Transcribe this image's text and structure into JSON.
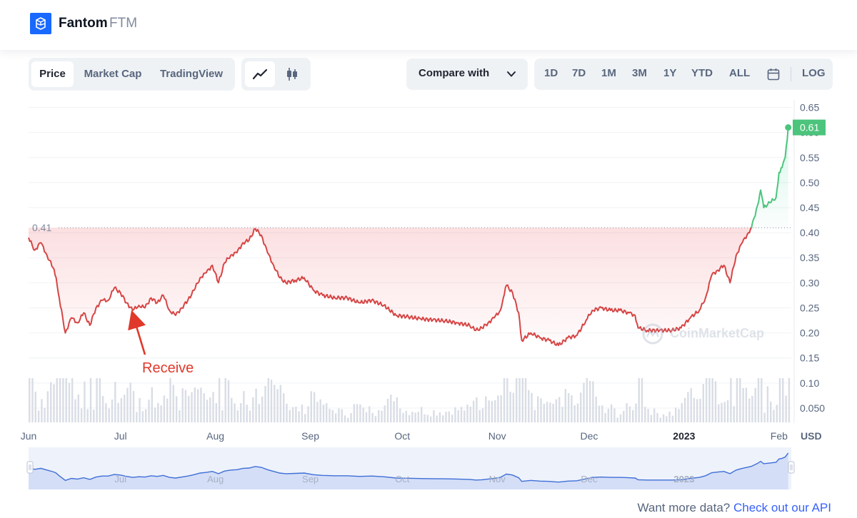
{
  "header": {
    "name": "Fantom",
    "symbol": "FTM"
  },
  "tabs": [
    {
      "label": "Price",
      "active": true
    },
    {
      "label": "Market Cap",
      "active": false
    },
    {
      "label": "TradingView",
      "active": false
    }
  ],
  "chart_types": [
    {
      "icon": "line-chart-icon",
      "active": true
    },
    {
      "icon": "candlestick-icon",
      "active": false
    }
  ],
  "compare": {
    "label": "Compare with",
    "icon": "chevron-down-icon"
  },
  "ranges": [
    "1D",
    "7D",
    "1M",
    "3M",
    "1Y",
    "YTD",
    "ALL"
  ],
  "calendar_icon": "calendar-icon",
  "log_label": "LOG",
  "watermark": "CoinMarketCap",
  "annotation": {
    "text": "Receive",
    "color": "#e0382a"
  },
  "footer": {
    "text": "Want more data? ",
    "link": "Check out our API"
  },
  "colors": {
    "down": "#d64545",
    "up": "#4cc47c",
    "accent": "#3861fb",
    "logo": "#1969ff",
    "navigator": "#3f6fd6"
  },
  "chart_data": {
    "type": "line",
    "title": "",
    "currency": "USD",
    "reference_price": 0.41,
    "reference_label": "0.41",
    "current_price": 0.61,
    "current_label": "0.61",
    "y_range": [
      0.02,
      0.665
    ],
    "y_ticks": [
      {
        "v": 0.65,
        "label": "0.65"
      },
      {
        "v": 0.6,
        "label": "0.60"
      },
      {
        "v": 0.55,
        "label": "0.55"
      },
      {
        "v": 0.5,
        "label": "0.50"
      },
      {
        "v": 0.45,
        "label": "0.45"
      },
      {
        "v": 0.4,
        "label": "0.40"
      },
      {
        "v": 0.35,
        "label": "0.35"
      },
      {
        "v": 0.3,
        "label": "0.30"
      },
      {
        "v": 0.25,
        "label": "0.25"
      },
      {
        "v": 0.2,
        "label": "0.20"
      },
      {
        "v": 0.15,
        "label": "0.15"
      },
      {
        "v": 0.1,
        "label": "0.10"
      },
      {
        "v": 0.05,
        "label": "0.050"
      }
    ],
    "x_range": [
      "2022-06-01",
      "2023-02-05"
    ],
    "x_ticks": [
      {
        "date": "2022-06-01",
        "label": "Jun",
        "bold": false
      },
      {
        "date": "2022-07-01",
        "label": "Jul",
        "bold": false
      },
      {
        "date": "2022-08-01",
        "label": "Aug",
        "bold": false
      },
      {
        "date": "2022-09-01",
        "label": "Sep",
        "bold": false
      },
      {
        "date": "2022-10-01",
        "label": "Oct",
        "bold": false
      },
      {
        "date": "2022-11-01",
        "label": "Nov",
        "bold": false
      },
      {
        "date": "2022-12-01",
        "label": "Dec",
        "bold": false
      },
      {
        "date": "2023-01-01",
        "label": "2023",
        "bold": true
      },
      {
        "date": "2023-02-01",
        "label": "Feb",
        "bold": false
      }
    ],
    "navigator_ticks": [
      "Jul",
      "Aug",
      "Sep",
      "Oct",
      "Nov",
      "Dec",
      "2023"
    ],
    "annotation_point": {
      "date": "2022-07-05",
      "price": 0.245
    },
    "series": [
      {
        "points": [
          [
            "2022-06-01",
            0.39
          ],
          [
            "2022-06-03",
            0.365
          ],
          [
            "2022-06-05",
            0.38
          ],
          [
            "2022-06-07",
            0.355
          ],
          [
            "2022-06-09",
            0.33
          ],
          [
            "2022-06-10",
            0.31
          ],
          [
            "2022-06-11",
            0.27
          ],
          [
            "2022-06-13",
            0.2
          ],
          [
            "2022-06-15",
            0.23
          ],
          [
            "2022-06-17",
            0.22
          ],
          [
            "2022-06-19",
            0.24
          ],
          [
            "2022-06-21",
            0.215
          ],
          [
            "2022-06-23",
            0.25
          ],
          [
            "2022-06-25",
            0.265
          ],
          [
            "2022-06-27",
            0.265
          ],
          [
            "2022-06-29",
            0.29
          ],
          [
            "2022-07-01",
            0.28
          ],
          [
            "2022-07-03",
            0.26
          ],
          [
            "2022-07-05",
            0.245
          ],
          [
            "2022-07-07",
            0.255
          ],
          [
            "2022-07-09",
            0.25
          ],
          [
            "2022-07-11",
            0.27
          ],
          [
            "2022-07-13",
            0.26
          ],
          [
            "2022-07-15",
            0.275
          ],
          [
            "2022-07-17",
            0.245
          ],
          [
            "2022-07-19",
            0.235
          ],
          [
            "2022-07-21",
            0.25
          ],
          [
            "2022-07-23",
            0.265
          ],
          [
            "2022-07-25",
            0.285
          ],
          [
            "2022-07-27",
            0.31
          ],
          [
            "2022-07-29",
            0.32
          ],
          [
            "2022-07-31",
            0.335
          ],
          [
            "2022-08-02",
            0.3
          ],
          [
            "2022-08-04",
            0.34
          ],
          [
            "2022-08-06",
            0.355
          ],
          [
            "2022-08-08",
            0.36
          ],
          [
            "2022-08-10",
            0.38
          ],
          [
            "2022-08-12",
            0.385
          ],
          [
            "2022-08-14",
            0.408
          ],
          [
            "2022-08-16",
            0.395
          ],
          [
            "2022-08-18",
            0.36
          ],
          [
            "2022-08-20",
            0.335
          ],
          [
            "2022-08-22",
            0.31
          ],
          [
            "2022-08-24",
            0.3
          ],
          [
            "2022-08-27",
            0.305
          ],
          [
            "2022-08-30",
            0.31
          ],
          [
            "2022-09-02",
            0.285
          ],
          [
            "2022-09-05",
            0.275
          ],
          [
            "2022-09-09",
            0.27
          ],
          [
            "2022-09-13",
            0.27
          ],
          [
            "2022-09-17",
            0.26
          ],
          [
            "2022-09-21",
            0.265
          ],
          [
            "2022-09-25",
            0.255
          ],
          [
            "2022-09-29",
            0.235
          ],
          [
            "2022-10-03",
            0.232
          ],
          [
            "2022-10-07",
            0.228
          ],
          [
            "2022-10-11",
            0.226
          ],
          [
            "2022-10-15",
            0.224
          ],
          [
            "2022-10-19",
            0.22
          ],
          [
            "2022-10-23",
            0.215
          ],
          [
            "2022-10-25",
            0.205
          ],
          [
            "2022-10-27",
            0.21
          ],
          [
            "2022-10-29",
            0.22
          ],
          [
            "2022-10-31",
            0.23
          ],
          [
            "2022-11-02",
            0.245
          ],
          [
            "2022-11-03",
            0.27
          ],
          [
            "2022-11-04",
            0.295
          ],
          [
            "2022-11-06",
            0.28
          ],
          [
            "2022-11-08",
            0.24
          ],
          [
            "2022-11-09",
            0.185
          ],
          [
            "2022-11-12",
            0.2
          ],
          [
            "2022-11-15",
            0.19
          ],
          [
            "2022-11-18",
            0.185
          ],
          [
            "2022-11-21",
            0.175
          ],
          [
            "2022-11-24",
            0.19
          ],
          [
            "2022-11-27",
            0.195
          ],
          [
            "2022-11-30",
            0.225
          ],
          [
            "2022-12-02",
            0.245
          ],
          [
            "2022-12-05",
            0.25
          ],
          [
            "2022-12-08",
            0.245
          ],
          [
            "2022-12-11",
            0.245
          ],
          [
            "2022-12-14",
            0.24
          ],
          [
            "2022-12-16",
            0.235
          ],
          [
            "2022-12-17",
            0.21
          ],
          [
            "2022-12-20",
            0.205
          ],
          [
            "2022-12-24",
            0.205
          ],
          [
            "2022-12-28",
            0.205
          ],
          [
            "2022-12-31",
            0.21
          ],
          [
            "2023-01-03",
            0.23
          ],
          [
            "2023-01-06",
            0.245
          ],
          [
            "2023-01-08",
            0.27
          ],
          [
            "2023-01-10",
            0.315
          ],
          [
            "2023-01-12",
            0.325
          ],
          [
            "2023-01-14",
            0.335
          ],
          [
            "2023-01-16",
            0.3
          ],
          [
            "2023-01-18",
            0.355
          ],
          [
            "2023-01-20",
            0.38
          ],
          [
            "2023-01-22",
            0.4
          ],
          [
            "2023-01-23",
            0.41
          ]
        ]
      },
      {
        "points": [
          [
            "2023-01-23",
            0.41
          ],
          [
            "2023-01-25",
            0.455
          ],
          [
            "2023-01-26",
            0.485
          ],
          [
            "2023-01-27",
            0.45
          ],
          [
            "2023-01-29",
            0.46
          ],
          [
            "2023-01-31",
            0.47
          ],
          [
            "2023-02-01",
            0.52
          ],
          [
            "2023-02-02",
            0.53
          ],
          [
            "2023-02-03",
            0.55
          ],
          [
            "2023-02-04",
            0.61
          ]
        ]
      }
    ],
    "volume_hint": "relative"
  }
}
